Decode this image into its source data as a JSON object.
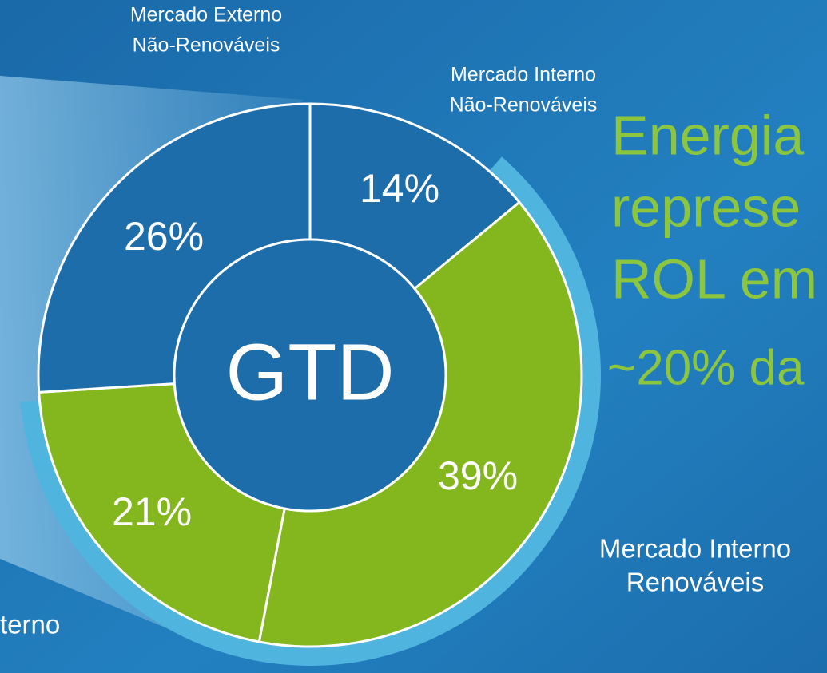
{
  "chart_data": {
    "type": "pie",
    "donut": true,
    "center_label": "GTD",
    "categories": [
      [
        "Mercado Interno",
        "Não-Renováveis"
      ],
      [
        "Mercado Interno",
        "Renováveis"
      ],
      [
        "terno"
      ],
      [
        "Mercado Externo",
        "Não-Renováveis"
      ]
    ],
    "values": [
      14,
      39,
      21,
      26
    ],
    "value_labels": [
      "14%",
      "39%",
      "21%",
      "26%"
    ],
    "colors": [
      "#1e6dab",
      "#84b71e",
      "#84b71e",
      "#1e6dab"
    ],
    "annotations": [
      "Energia",
      "represe",
      "ROL em",
      "~20% da"
    ]
  }
}
